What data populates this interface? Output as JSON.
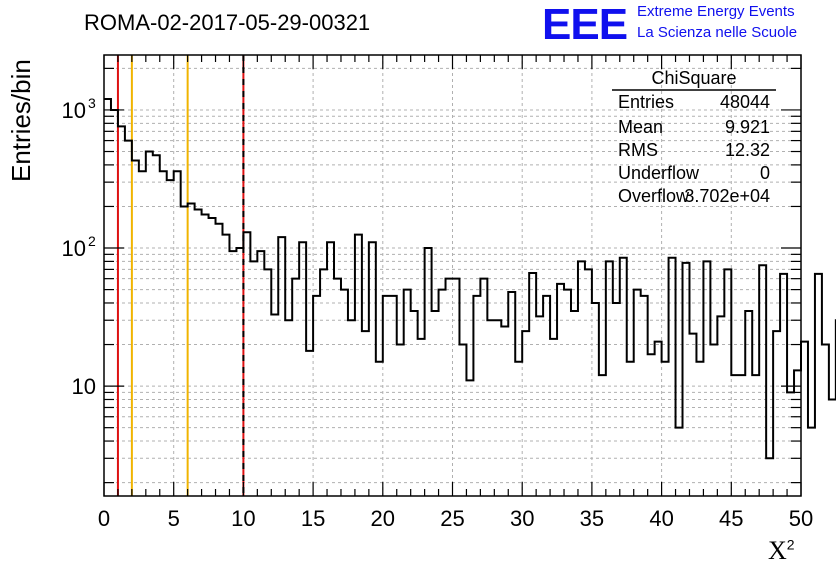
{
  "header": {
    "title": "ROMA-02-2017-05-29-00321",
    "logo_text": "EEE",
    "logo_line1": "Extreme Energy Events",
    "logo_line2": "La Scienza nelle Scuole"
  },
  "stats": {
    "title": "ChiSquare",
    "rows": [
      {
        "key": "Entries",
        "value": "48044"
      },
      {
        "key": "Mean",
        "value": "9.921"
      },
      {
        "key": "RMS",
        "value": "12.32"
      },
      {
        "key": "Underflow",
        "value": "0"
      },
      {
        "key": "Overflow",
        "value": "3.702e+04"
      }
    ]
  },
  "colors": {
    "histogram": "#000000",
    "red_line": "#dd1111",
    "yellow_line": "#f0b400",
    "logo": "#1010ee",
    "grid": "#b0b0b0"
  },
  "chart_data": {
    "type": "histogram",
    "title": "ROMA-02-2017-05-29-00321",
    "xlabel": "X",
    "xlabel_superscript": "2",
    "ylabel": "Entries/bin",
    "xlim": [
      0,
      50
    ],
    "ylim": [
      1.6,
      2500
    ],
    "yscale": "log",
    "grid": true,
    "legend": "stats box top-right",
    "xticks": [
      "0",
      "5",
      "10",
      "15",
      "20",
      "25",
      "30",
      "35",
      "40",
      "45",
      "50"
    ],
    "yticks": [
      {
        "value": 10,
        "label": "10"
      },
      {
        "value": 100,
        "label": "10",
        "exp": "2"
      },
      {
        "value": 1000,
        "label": "10",
        "exp": "3"
      }
    ],
    "bin_width": 0.5,
    "x_start": 0,
    "values": [
      1200,
      1000,
      760,
      600,
      430,
      360,
      500,
      470,
      360,
      310,
      360,
      200,
      210,
      190,
      175,
      165,
      150,
      125,
      95,
      100,
      130,
      80,
      95,
      70,
      33,
      120,
      30,
      60,
      110,
      18,
      45,
      70,
      110,
      60,
      50,
      30,
      125,
      25,
      110,
      15,
      45,
      45,
      20,
      50,
      35,
      22,
      100,
      35,
      50,
      60,
      60,
      20,
      11,
      45,
      60,
      30,
      30,
      27,
      48,
      15,
      25,
      66,
      32,
      45,
      22,
      55,
      50,
      35,
      80,
      70,
      40,
      12,
      80,
      40,
      85,
      15,
      50,
      45,
      17,
      21,
      15,
      85,
      5,
      78,
      24,
      15,
      80,
      20,
      32,
      70,
      12,
      12,
      35,
      12,
      75,
      3,
      25,
      65,
      9,
      13,
      21,
      5,
      65,
      20,
      8,
      30,
      10,
      30,
      8,
      11
    ],
    "vertical_markers": [
      {
        "x": 1,
        "color": "red",
        "style": "solid"
      },
      {
        "x": 2,
        "color": "yellow",
        "style": "solid"
      },
      {
        "x": 6,
        "color": "yellow",
        "style": "solid"
      },
      {
        "x": 10,
        "color": "red",
        "style": "dashed"
      }
    ]
  }
}
